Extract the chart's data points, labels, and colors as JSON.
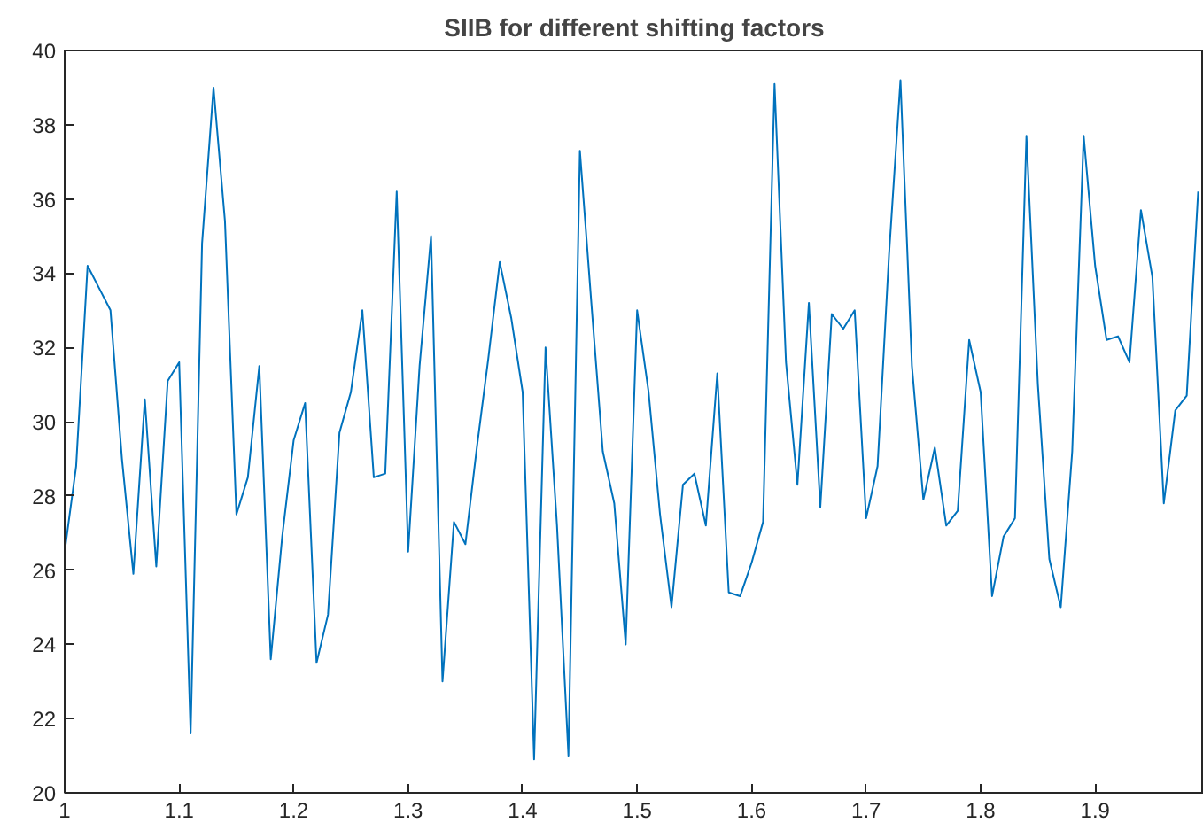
{
  "chart_data": {
    "type": "line",
    "title": "SIIB for different shifting factors",
    "x": [
      1.0,
      1.01,
      1.02,
      1.03,
      1.04,
      1.05,
      1.06,
      1.07,
      1.08,
      1.09,
      1.1,
      1.11,
      1.12,
      1.13,
      1.14,
      1.15,
      1.16,
      1.17,
      1.18,
      1.19,
      1.2,
      1.21,
      1.22,
      1.23,
      1.24,
      1.25,
      1.26,
      1.27,
      1.28,
      1.29,
      1.3,
      1.31,
      1.32,
      1.33,
      1.34,
      1.35,
      1.36,
      1.37,
      1.38,
      1.39,
      1.4,
      1.41,
      1.42,
      1.43,
      1.44,
      1.45,
      1.46,
      1.47,
      1.48,
      1.49,
      1.5,
      1.51,
      1.52,
      1.53,
      1.54,
      1.55,
      1.56,
      1.57,
      1.58,
      1.59,
      1.6,
      1.61,
      1.62,
      1.63,
      1.64,
      1.65,
      1.66,
      1.67,
      1.68,
      1.69,
      1.7,
      1.71,
      1.72,
      1.73,
      1.74,
      1.75,
      1.76,
      1.77,
      1.78,
      1.79,
      1.8,
      1.81,
      1.82,
      1.83,
      1.84,
      1.85,
      1.86,
      1.87,
      1.88,
      1.89,
      1.9,
      1.91,
      1.92,
      1.93,
      1.94,
      1.95,
      1.96,
      1.97,
      1.98,
      1.99
    ],
    "series": [
      {
        "color": "#0072bd",
        "values": [
          26.5,
          28.8,
          34.2,
          33.6,
          33.0,
          29.0,
          25.9,
          30.6,
          26.1,
          31.1,
          31.6,
          21.6,
          34.8,
          39.0,
          35.4,
          27.5,
          28.5,
          31.5,
          23.6,
          26.9,
          29.5,
          30.5,
          23.5,
          24.8,
          29.7,
          30.8,
          33.0,
          28.5,
          28.6,
          36.2,
          26.5,
          31.5,
          35.0,
          23.0,
          27.3,
          26.7,
          29.3,
          31.7,
          34.3,
          32.8,
          30.8,
          20.9,
          32.0,
          27.2,
          21.0,
          37.3,
          33.2,
          29.2,
          27.8,
          24.0,
          33.0,
          30.8,
          27.5,
          25.0,
          28.3,
          28.6,
          27.2,
          31.3,
          25.4,
          25.3,
          26.2,
          27.3,
          39.1,
          31.6,
          28.3,
          33.2,
          27.7,
          32.9,
          32.5,
          33.0,
          27.4,
          28.8,
          34.5,
          39.2,
          31.5,
          27.9,
          29.3,
          27.2,
          27.6,
          32.2,
          30.8,
          25.3,
          26.9,
          27.4,
          37.7,
          31.0,
          26.3,
          25.0,
          29.2,
          37.7,
          34.2,
          32.2,
          32.3,
          31.6,
          35.7,
          33.9,
          27.8,
          30.3,
          30.7,
          36.2
        ]
      }
    ],
    "xlim": [
      1,
      1.995
    ],
    "ylim": [
      20,
      40
    ],
    "xticks": [
      1,
      1.1,
      1.2,
      1.3,
      1.4,
      1.5,
      1.6,
      1.7,
      1.8,
      1.9
    ],
    "yticks": [
      20,
      22,
      24,
      26,
      28,
      30,
      32,
      34,
      36,
      38,
      40
    ],
    "grid": false,
    "line_style": "solid",
    "marker": "none"
  }
}
